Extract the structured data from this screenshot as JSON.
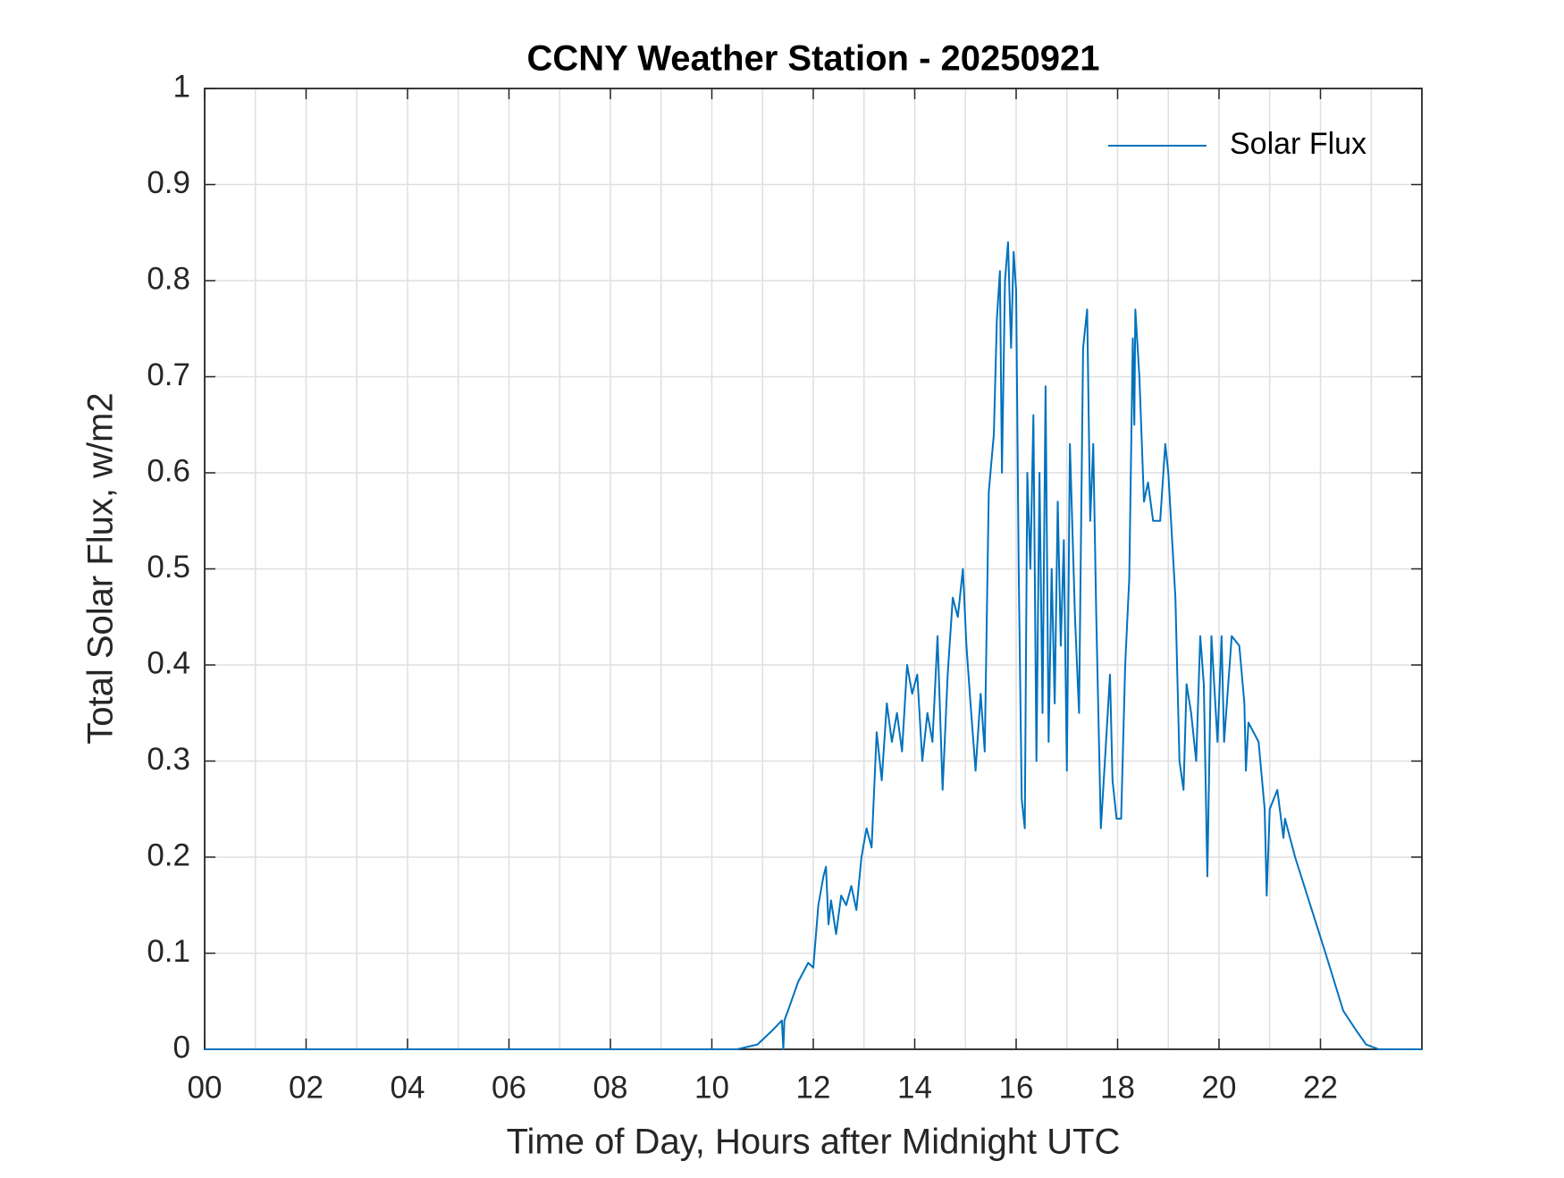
{
  "chart_data": {
    "type": "line",
    "title": "CCNY Weather Station - 20250921",
    "x_label": "Time of Day, Hours after Midnight UTC",
    "y_label": "Total Solar Flux, w/m2",
    "xlim": [
      0,
      24
    ],
    "ylim": [
      0,
      1
    ],
    "xticks": [
      {
        "value": 0,
        "label": "00"
      },
      {
        "value": 2,
        "label": "02"
      },
      {
        "value": 4,
        "label": "04"
      },
      {
        "value": 6,
        "label": "06"
      },
      {
        "value": 8,
        "label": "08"
      },
      10,
      12,
      14,
      16,
      18,
      20,
      22
    ],
    "yticks": [
      0,
      0.1,
      0.2,
      0.3,
      0.4,
      0.5,
      0.6,
      0.7,
      0.8,
      0.9,
      1
    ],
    "grid": true,
    "x_minor_grid": true,
    "legend": "top-right",
    "x": [
      0,
      10.5,
      10.9,
      11.2,
      11.38,
      11.41,
      11.43,
      11.5,
      11.7,
      11.9,
      12.0,
      12.1,
      12.2,
      12.25,
      12.3,
      12.35,
      12.45,
      12.55,
      12.65,
      12.75,
      12.85,
      12.95,
      13.05,
      13.15,
      13.25,
      13.35,
      13.45,
      13.55,
      13.65,
      13.75,
      13.85,
      13.95,
      14.05,
      14.15,
      14.25,
      14.35,
      14.45,
      14.55,
      14.65,
      14.75,
      14.85,
      14.95,
      15.02,
      15.1,
      15.2,
      15.3,
      15.38,
      15.46,
      15.56,
      15.62,
      15.68,
      15.72,
      15.78,
      15.84,
      15.9,
      15.95,
      16.0,
      16.05,
      16.11,
      16.17,
      16.22,
      16.28,
      16.34,
      16.4,
      16.46,
      16.52,
      16.58,
      16.64,
      16.7,
      16.76,
      16.82,
      16.88,
      16.94,
      17.0,
      17.06,
      17.16,
      17.24,
      17.32,
      17.4,
      17.46,
      17.52,
      17.58,
      17.67,
      17.75,
      17.85,
      17.9,
      17.98,
      18.07,
      18.15,
      18.23,
      18.3,
      18.33,
      18.35,
      18.43,
      18.52,
      18.6,
      18.7,
      18.84,
      18.94,
      19.0,
      19.14,
      19.22,
      19.3,
      19.36,
      19.45,
      19.55,
      19.63,
      19.7,
      19.77,
      19.85,
      19.97,
      20.05,
      20.1,
      20.25,
      20.4,
      20.5,
      20.53,
      20.58,
      20.78,
      20.9,
      20.94,
      21.0,
      21.15,
      21.27,
      21.3,
      21.5,
      21.8,
      22.1,
      22.45,
      22.7,
      22.9,
      23.15,
      24
    ],
    "series": [
      {
        "name": "Solar Flux",
        "color": "#0072bd",
        "values": [
          0,
          0,
          0.005,
          0.02,
          0.03,
          0,
          0.03,
          0.04,
          0.07,
          0.09,
          0.085,
          0.15,
          0.18,
          0.19,
          0.13,
          0.155,
          0.12,
          0.16,
          0.15,
          0.17,
          0.145,
          0.2,
          0.23,
          0.21,
          0.33,
          0.28,
          0.36,
          0.32,
          0.35,
          0.31,
          0.4,
          0.37,
          0.39,
          0.3,
          0.35,
          0.32,
          0.43,
          0.27,
          0.39,
          0.47,
          0.45,
          0.5,
          0.42,
          0.36,
          0.29,
          0.37,
          0.31,
          0.58,
          0.64,
          0.76,
          0.81,
          0.6,
          0.8,
          0.84,
          0.73,
          0.83,
          0.79,
          0.5,
          0.26,
          0.23,
          0.6,
          0.5,
          0.66,
          0.3,
          0.6,
          0.35,
          0.69,
          0.32,
          0.5,
          0.36,
          0.57,
          0.42,
          0.53,
          0.29,
          0.63,
          0.45,
          0.35,
          0.73,
          0.77,
          0.55,
          0.63,
          0.45,
          0.23,
          0.3,
          0.39,
          0.28,
          0.24,
          0.24,
          0.4,
          0.49,
          0.74,
          0.65,
          0.77,
          0.7,
          0.57,
          0.59,
          0.55,
          0.55,
          0.63,
          0.6,
          0.47,
          0.3,
          0.27,
          0.38,
          0.35,
          0.3,
          0.43,
          0.38,
          0.18,
          0.43,
          0.32,
          0.43,
          0.32,
          0.43,
          0.42,
          0.36,
          0.29,
          0.34,
          0.32,
          0.25,
          0.16,
          0.25,
          0.27,
          0.22,
          0.24,
          0.2,
          0.15,
          0.1,
          0.04,
          0.02,
          0.005,
          0,
          0
        ]
      }
    ]
  }
}
